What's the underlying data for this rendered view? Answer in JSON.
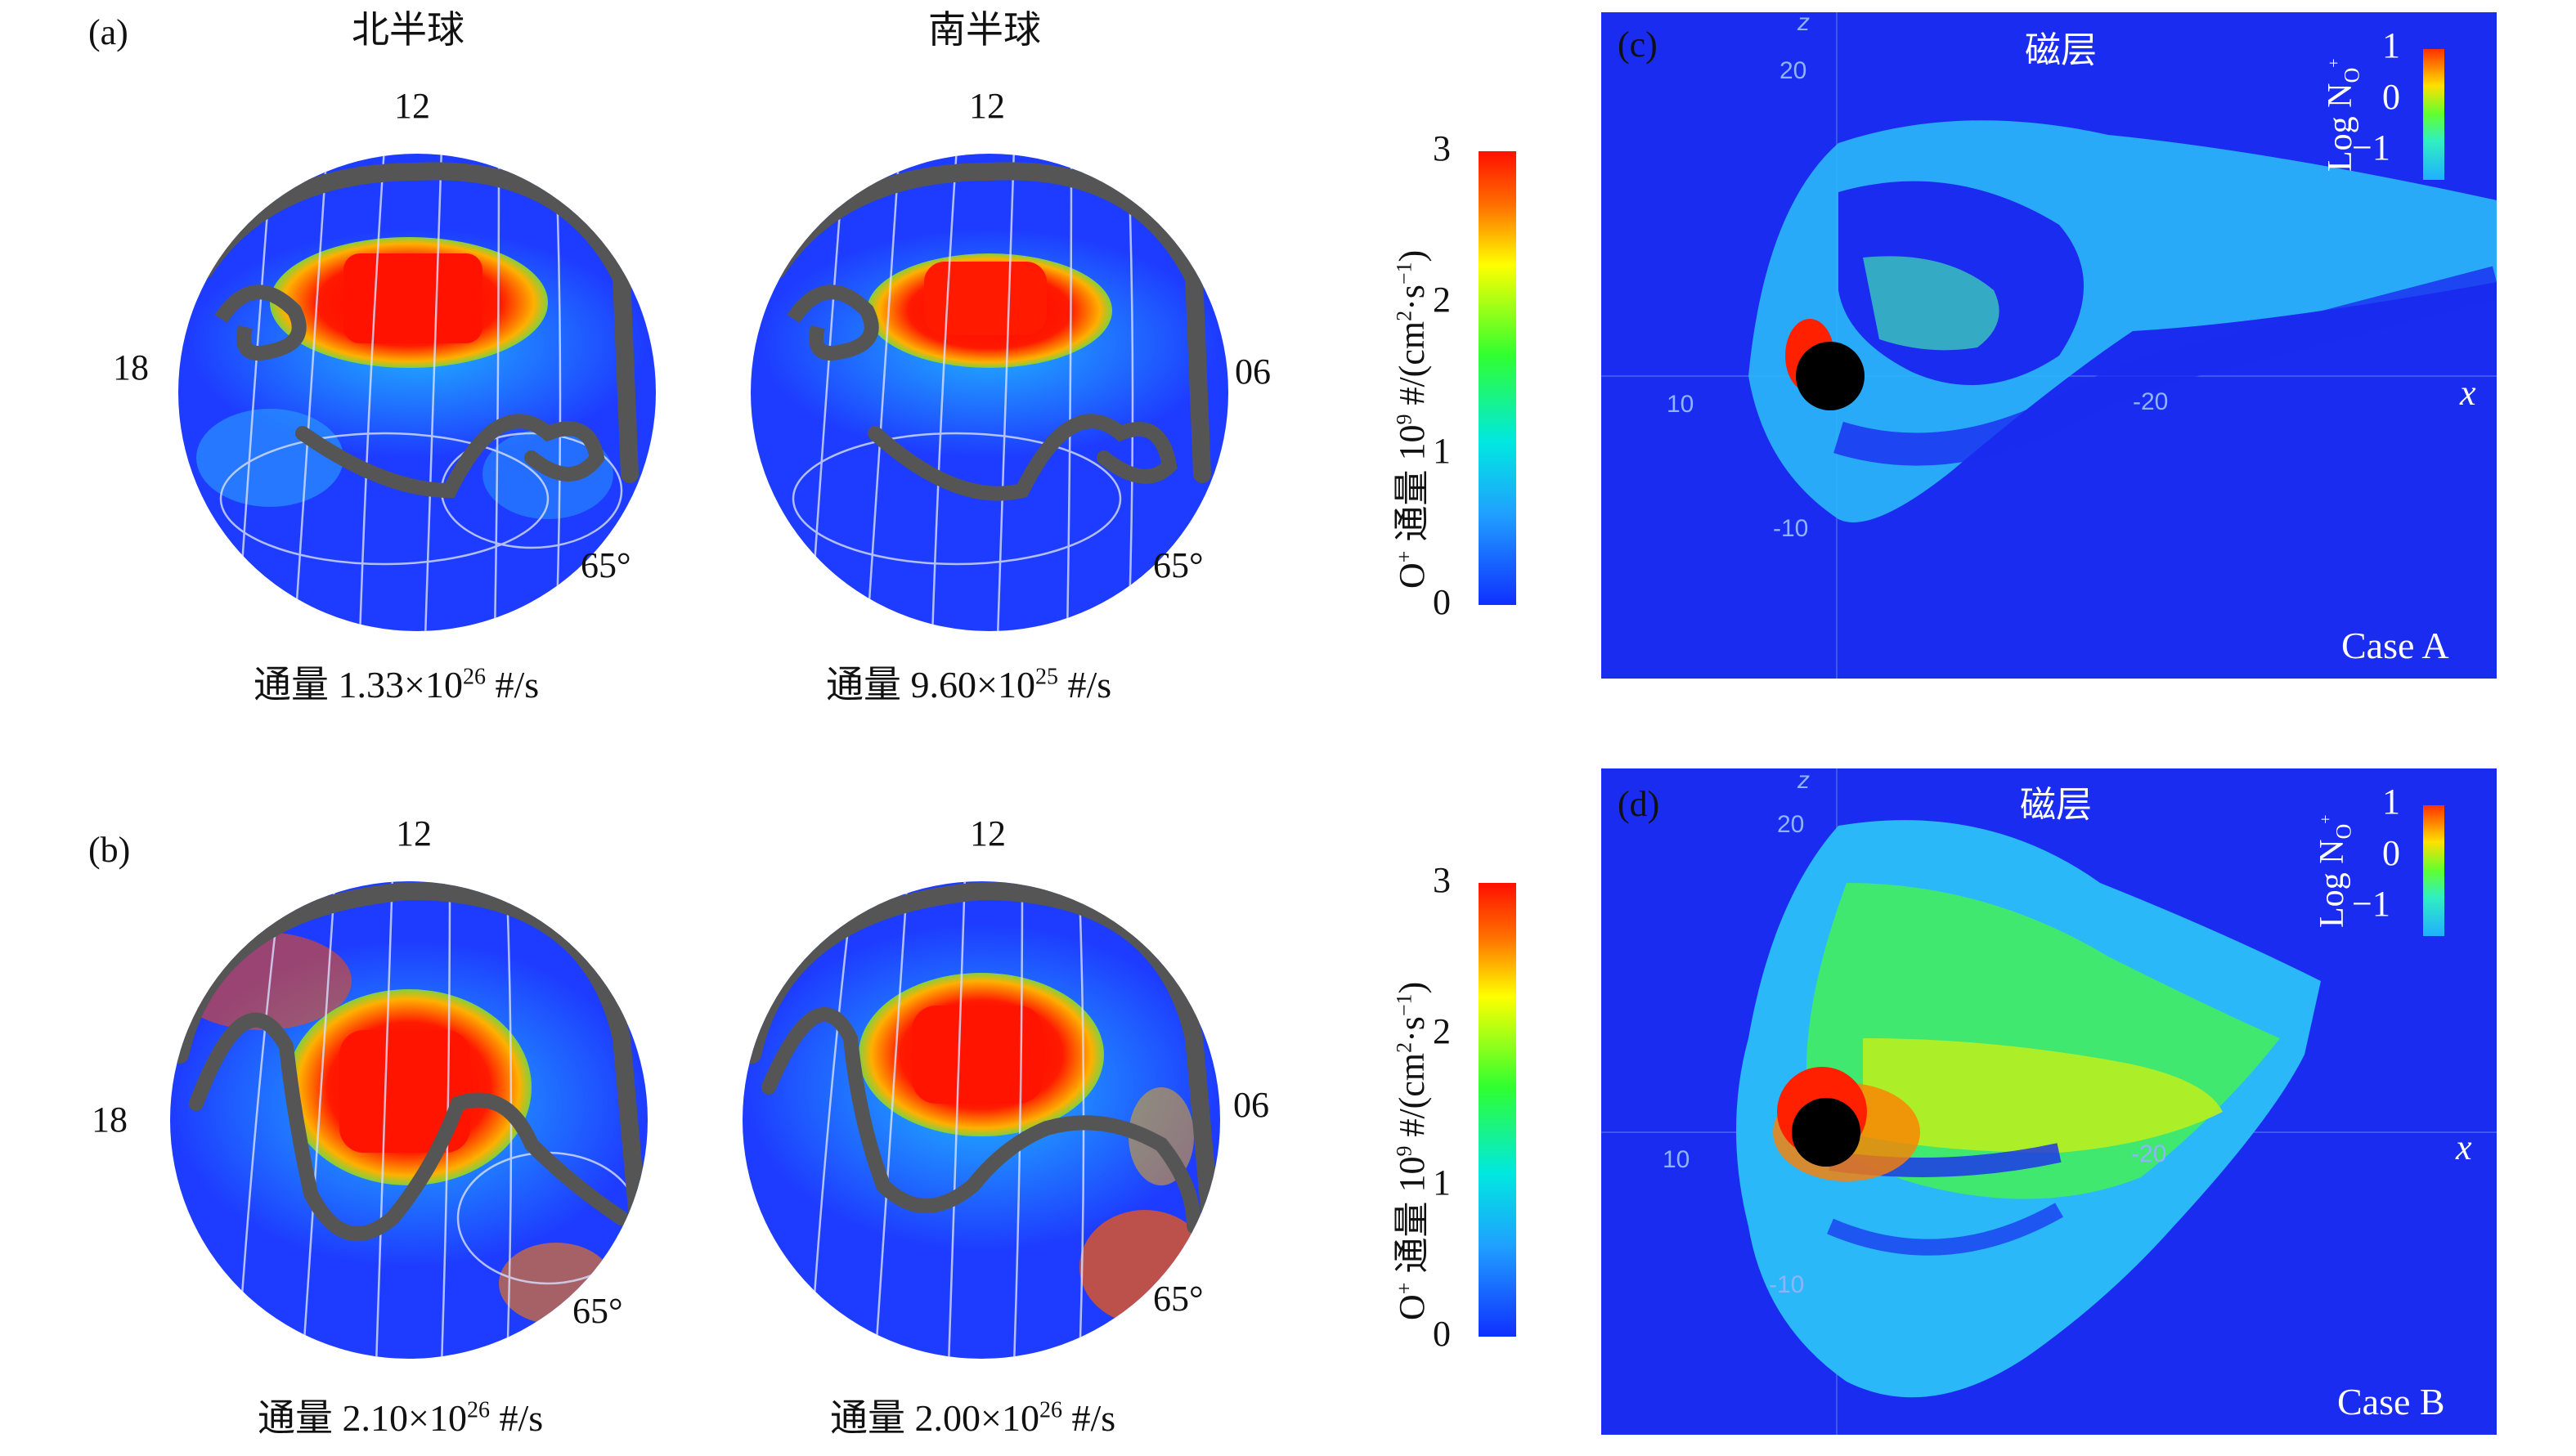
{
  "panels": {
    "a": {
      "letter": "(a)"
    },
    "b": {
      "letter": "(b)"
    },
    "c": {
      "letter": "(c)"
    },
    "d": {
      "letter": "(d)"
    }
  },
  "hemispheres": {
    "north": "北半球",
    "south": "南半球"
  },
  "clock_labels": {
    "noon": "12",
    "dusk": "18",
    "dawn": "06",
    "latitude": "65°"
  },
  "flux": {
    "prefix": "通量",
    "unit": "#/s",
    "a_north": {
      "mantissa": "1.33×10",
      "exp": "26"
    },
    "a_south": {
      "mantissa": "9.60×10",
      "exp": "25"
    },
    "b_north": {
      "mantissa": "2.10×10",
      "exp": "26"
    },
    "b_south": {
      "mantissa": "2.00×10",
      "exp": "26"
    }
  },
  "colorbar": {
    "title_pre": "O",
    "title_sup": "+",
    "title_mid": " 通量 10",
    "title_exp": "9",
    "title_unit": " #/(cm",
    "title_sup2": "2",
    "title_tail": "·s",
    "title_sup3": "−1",
    "title_end": ")",
    "ticks": [
      "3",
      "2",
      "1",
      "0"
    ],
    "colors": [
      "#0000ff",
      "#00c8ff",
      "#00ff40",
      "#ffff00",
      "#ff0000"
    ]
  },
  "magnetosphere": {
    "title": "磁层",
    "axis_z": "z",
    "axis_x": "x",
    "ticks": {
      "z20": "20",
      "zm10": "-10",
      "x10": "10",
      "xm20": "-20"
    },
    "log_label": "Log N",
    "log_sub": "O",
    "log_sup": "+",
    "log_ticks": [
      "1",
      "0",
      "−1"
    ],
    "case_c": "Case A",
    "case_d": "Case B"
  }
}
